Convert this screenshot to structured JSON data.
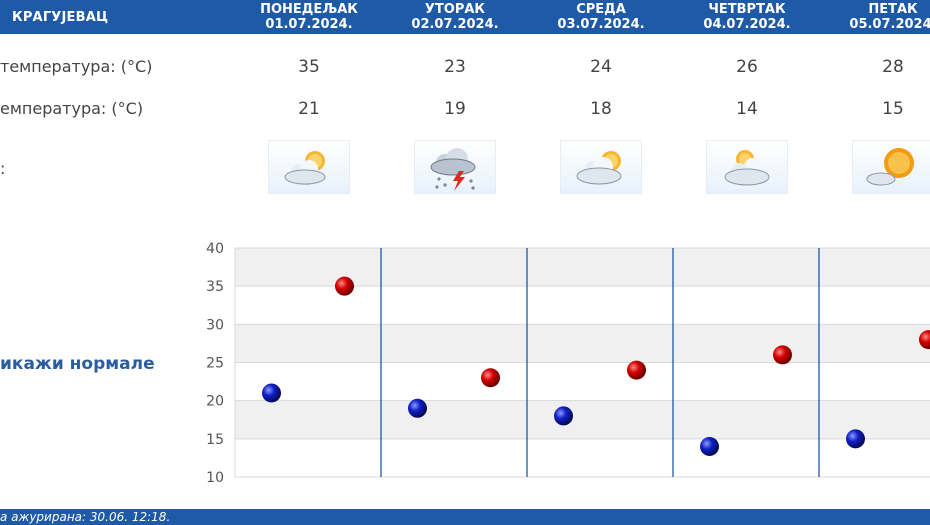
{
  "header": {
    "city": "КРАГУЈЕВАЦ",
    "days": [
      {
        "name": "ПОНЕДЕЉАК",
        "date": "01.07.2024."
      },
      {
        "name": "УТОРАК",
        "date": "02.07.2024."
      },
      {
        "name": "СРЕДА",
        "date": "03.07.2024."
      },
      {
        "name": "ЧЕТВРТАК",
        "date": "04.07.2024."
      },
      {
        "name": "ПЕТАК",
        "date": "05.07.2024."
      }
    ]
  },
  "rows": {
    "max_label": "температура: (°C)",
    "min_label": "емпература: (°C)",
    "icon_label": ":",
    "max": [
      "35",
      "23",
      "24",
      "26",
      "28"
    ],
    "min": [
      "21",
      "19",
      "18",
      "14",
      "15"
    ],
    "icons": [
      "partly-cloudy-icon",
      "thunderstorm-icon",
      "partly-cloudy-icon",
      "partly-cloudy-icon",
      "mostly-sunny-icon"
    ]
  },
  "normals_link": "икажи нормале",
  "footer": {
    "updated": "а ажурирана:  30.06. 12:18."
  },
  "colors": {
    "header_bg": "#1f5aa6",
    "max_dot": "#cc0000",
    "min_dot": "#0a1ab0",
    "day_separator": "#1f5aa6"
  },
  "chart_data": {
    "type": "scatter",
    "categories": [
      "01.07.2024.",
      "02.07.2024.",
      "03.07.2024.",
      "04.07.2024.",
      "05.07.2024."
    ],
    "series": [
      {
        "values": [
          35,
          23,
          24,
          26,
          28
        ],
        "color": "#cc0000"
      },
      {
        "values": [
          21,
          19,
          18,
          14,
          15
        ],
        "color": "#0a1ab0"
      }
    ],
    "ylim": [
      10,
      40
    ],
    "yticks": [
      10,
      15,
      20,
      25,
      30,
      35,
      40
    ],
    "grid": true
  }
}
